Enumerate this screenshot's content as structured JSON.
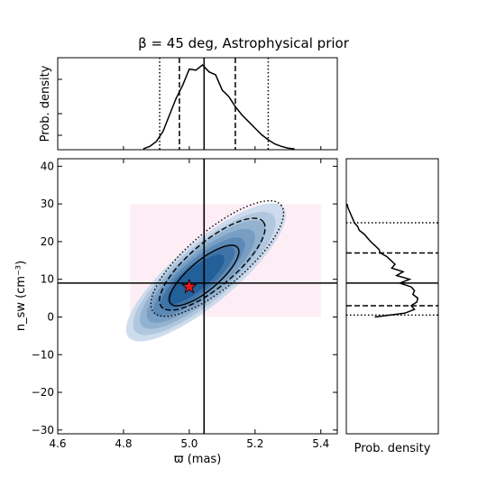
{
  "chart_data": [
    {
      "panel": "main-2d-histogram",
      "type": "heatmap",
      "title": "β = 45 deg, Astrophysical prior",
      "xlabel": "ϖ (mas)",
      "ylabel": "n_sw (cm⁻³)",
      "xlim": [
        4.6,
        5.45
      ],
      "ylim": [
        -31,
        42
      ],
      "xticks": [
        "4.6",
        "4.8",
        "5.0",
        "5.2",
        "5.4"
      ],
      "yticks": [
        "−30",
        "−20",
        "−10",
        "0",
        "10",
        "20",
        "30",
        "40"
      ],
      "prior_region": {
        "x": [
          4.82,
          5.4
        ],
        "y": [
          0,
          30
        ],
        "color": "#fdeef6"
      },
      "density_center": {
        "x": 5.02,
        "y": 10
      },
      "density_cmap": [
        "#c6d7ea",
        "#1f5c97"
      ],
      "contours": [
        {
          "level": "1-sigma",
          "style": "solid",
          "center": [
            5.045,
            11
          ],
          "extent": [
            0.1,
            12
          ],
          "tilt_deg": 35
        },
        {
          "level": "2-sigma",
          "style": "dashed",
          "center": [
            5.07,
            14
          ],
          "extent": [
            0.17,
            17
          ],
          "tilt_deg": 35
        },
        {
          "level": "3-sigma",
          "style": "dotted",
          "center": [
            5.085,
            15.5
          ],
          "extent": [
            0.23,
            20
          ],
          "tilt_deg": 35
        }
      ],
      "reference_lines": {
        "x": 5.045,
        "y": 9
      },
      "true_point": {
        "x": 5.0,
        "y": 8,
        "marker": "star",
        "color": "#e31a1c"
      }
    },
    {
      "panel": "top-marginal",
      "type": "line",
      "ylabel": "Prob. density",
      "xlim": [
        4.6,
        5.45
      ],
      "x": [
        4.86,
        4.88,
        4.9,
        4.92,
        4.94,
        4.96,
        4.98,
        5.0,
        5.02,
        5.04,
        5.06,
        5.08,
        5.1,
        5.12,
        5.14,
        5.16,
        5.18,
        5.2,
        5.22,
        5.24,
        5.26,
        5.28,
        5.3,
        5.32
      ],
      "values": [
        0.01,
        0.04,
        0.1,
        0.22,
        0.42,
        0.62,
        0.8,
        0.95,
        0.98,
        1.0,
        0.96,
        0.88,
        0.74,
        0.62,
        0.52,
        0.42,
        0.34,
        0.26,
        0.18,
        0.12,
        0.07,
        0.04,
        0.02,
        0.01
      ],
      "vlines": [
        {
          "x": 5.045,
          "style": "solid"
        },
        {
          "x": 4.97,
          "style": "dashed"
        },
        {
          "x": 5.14,
          "style": "dashed"
        },
        {
          "x": 4.91,
          "style": "dotted"
        },
        {
          "x": 5.24,
          "style": "dotted"
        }
      ]
    },
    {
      "panel": "right-marginal",
      "type": "line",
      "xlabel": "Prob. density",
      "ylim": [
        -31,
        42
      ],
      "y": [
        0,
        1,
        2,
        3,
        4,
        5,
        6,
        7,
        8,
        9,
        10,
        11,
        12,
        13,
        14,
        15,
        16,
        17,
        18,
        19,
        20,
        21,
        22,
        23,
        24,
        25,
        26,
        27,
        28,
        29,
        30
      ],
      "values": [
        0.35,
        0.72,
        0.84,
        0.8,
        0.87,
        0.88,
        0.82,
        0.84,
        0.8,
        0.66,
        0.78,
        0.62,
        0.7,
        0.56,
        0.6,
        0.55,
        0.5,
        0.42,
        0.4,
        0.35,
        0.3,
        0.26,
        0.22,
        0.16,
        0.14,
        0.1,
        0.08,
        0.06,
        0.04,
        0.02,
        0.01
      ],
      "hlines": [
        {
          "y": 9,
          "style": "solid"
        },
        {
          "y": 3,
          "style": "dashed"
        },
        {
          "y": 17,
          "style": "dashed"
        },
        {
          "y": 0.5,
          "style": "dotted"
        },
        {
          "y": 25,
          "style": "dotted"
        }
      ]
    }
  ]
}
